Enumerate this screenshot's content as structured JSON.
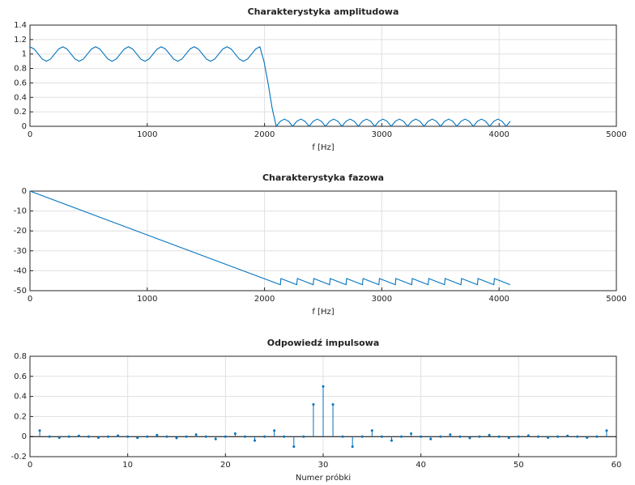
{
  "chart_data": [
    {
      "type": "line",
      "title": "Charakterystyka amplitudowa",
      "xlabel": "f [Hz]",
      "color": "#0072bd",
      "grid": true,
      "xlim": [
        0,
        5000
      ],
      "xticks": [
        0,
        1000,
        2000,
        3000,
        4000,
        5000
      ],
      "ylim": [
        0,
        1.4
      ],
      "yticks": [
        0,
        0.2,
        0.4,
        0.6,
        0.8,
        1,
        1.2,
        1.4
      ],
      "x": [
        0,
        35,
        70,
        105,
        140,
        175,
        210,
        245,
        280,
        315,
        350,
        385,
        420,
        455,
        490,
        525,
        560,
        595,
        630,
        665,
        700,
        735,
        770,
        805,
        840,
        875,
        910,
        945,
        980,
        1015,
        1050,
        1085,
        1120,
        1155,
        1190,
        1225,
        1260,
        1295,
        1330,
        1365,
        1400,
        1435,
        1470,
        1505,
        1540,
        1575,
        1610,
        1645,
        1680,
        1715,
        1750,
        1785,
        1820,
        1855,
        1890,
        1925,
        1960,
        1995,
        2030,
        2065,
        2100,
        2135,
        2170,
        2205,
        2240,
        2275,
        2310,
        2345,
        2380,
        2415,
        2450,
        2485,
        2520,
        2555,
        2590,
        2625,
        2660,
        2695,
        2730,
        2765,
        2800,
        2835,
        2870,
        2905,
        2940,
        2975,
        3010,
        3045,
        3080,
        3115,
        3150,
        3185,
        3220,
        3255,
        3290,
        3325,
        3360,
        3395,
        3430,
        3465,
        3500,
        3535,
        3570,
        3605,
        3640,
        3675,
        3710,
        3745,
        3780,
        3815,
        3850,
        3885,
        3920,
        3955,
        3990,
        4025,
        4060,
        4095
      ],
      "values": [
        1.1,
        1.07,
        1,
        0.93,
        0.9,
        0.93,
        1,
        1.07,
        1.1,
        1.07,
        1,
        0.93,
        0.9,
        0.93,
        1,
        1.07,
        1.1,
        1.07,
        1,
        0.93,
        0.9,
        0.93,
        1,
        1.07,
        1.1,
        1.07,
        1,
        0.93,
        0.9,
        0.93,
        1,
        1.07,
        1.1,
        1.07,
        1,
        0.93,
        0.9,
        0.93,
        1,
        1.07,
        1.1,
        1.07,
        1,
        0.93,
        0.9,
        0.93,
        1,
        1.07,
        1.1,
        1.07,
        1,
        0.93,
        0.9,
        0.93,
        1,
        1.07,
        1.1,
        0.9,
        0.6,
        0.25,
        0,
        0.07,
        0.1,
        0.07,
        0,
        0.07,
        0.1,
        0.07,
        0,
        0.07,
        0.1,
        0.07,
        0,
        0.07,
        0.1,
        0.07,
        0,
        0.07,
        0.1,
        0.07,
        0,
        0.07,
        0.1,
        0.07,
        0,
        0.07,
        0.1,
        0.07,
        0,
        0.07,
        0.1,
        0.07,
        0,
        0.07,
        0.1,
        0.07,
        0,
        0.07,
        0.1,
        0.07,
        0,
        0.07,
        0.1,
        0.07,
        0,
        0.07,
        0.1,
        0.07,
        0,
        0.07,
        0.1,
        0.07,
        0,
        0.07,
        0.1,
        0.07,
        0,
        0.07
      ]
    },
    {
      "type": "line",
      "title": "Charakterystyka fazowa",
      "xlabel": "f [Hz]",
      "color": "#0072bd",
      "grid": true,
      "xlim": [
        0,
        5000
      ],
      "xticks": [
        0,
        1000,
        2000,
        3000,
        4000,
        5000
      ],
      "ylim": [
        -50,
        0
      ],
      "yticks": [
        -50,
        -40,
        -30,
        -20,
        -10,
        0
      ],
      "x": [
        0,
        2135,
        2140,
        2275,
        2280,
        2415,
        2420,
        2555,
        2560,
        2695,
        2700,
        2835,
        2840,
        2975,
        2980,
        3115,
        3120,
        3255,
        3260,
        3395,
        3400,
        3535,
        3540,
        3675,
        3680,
        3815,
        3820,
        3955,
        3960,
        4095
      ],
      "values": [
        0,
        -47,
        -43.9,
        -47,
        -43.9,
        -47,
        -43.9,
        -47,
        -43.9,
        -47,
        -43.9,
        -47,
        -43.9,
        -47,
        -43.9,
        -47,
        -43.9,
        -47,
        -43.9,
        -47,
        -43.9,
        -47,
        -43.9,
        -47,
        -43.9,
        -47,
        -43.9,
        -47,
        -43.9,
        -47
      ]
    },
    {
      "type": "stem",
      "title": "Odpowiedź impulsowa",
      "xlabel": "Numer próbki",
      "color": "#0072bd",
      "grid": true,
      "xlim": [
        0,
        60
      ],
      "xticks": [
        0,
        10,
        20,
        30,
        40,
        50,
        60
      ],
      "ylim": [
        -0.2,
        0.8
      ],
      "yticks": [
        -0.2,
        0,
        0.2,
        0.4,
        0.6,
        0.8
      ],
      "x": [
        1,
        2,
        3,
        4,
        5,
        6,
        7,
        8,
        9,
        10,
        11,
        12,
        13,
        14,
        15,
        16,
        17,
        18,
        19,
        20,
        21,
        22,
        23,
        24,
        25,
        26,
        27,
        28,
        29,
        30,
        31,
        32,
        33,
        34,
        35,
        36,
        37,
        38,
        39,
        40,
        41,
        42,
        43,
        44,
        45,
        46,
        47,
        48,
        49,
        50,
        51,
        52,
        53,
        54,
        55,
        56,
        57,
        58,
        59
      ],
      "values": [
        0.06,
        0,
        -0.01,
        0,
        0.008,
        0,
        -0.01,
        0,
        0.01,
        0,
        -0.012,
        0,
        0.015,
        0,
        -0.015,
        0,
        0.02,
        0,
        -0.025,
        0,
        0.03,
        0,
        -0.04,
        0,
        0.06,
        0,
        -0.1,
        0,
        0.32,
        0.5,
        0.32,
        0,
        -0.1,
        0,
        0.06,
        0,
        -0.04,
        0,
        0.03,
        0,
        -0.025,
        0,
        0.02,
        0,
        -0.015,
        0,
        0.015,
        0,
        -0.012,
        0,
        0.01,
        0,
        -0.01,
        0,
        0.008,
        0,
        -0.01,
        0,
        0.06
      ]
    }
  ]
}
